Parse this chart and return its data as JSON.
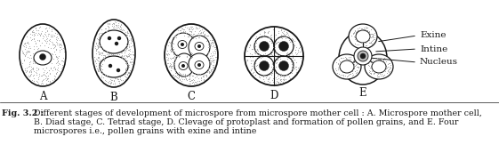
{
  "fig_label": "Fig. 3.2 :",
  "caption_line1": "Different stages of development of microspore from microspore mother cell : A. Microspore mother cell,",
  "caption_line2": "B. Diad stage, C. Tetrad stage, D. Clevage of protoplast and formation of pollen grains, and E. Four",
  "caption_line3": "microspores i.e., pollen grains with exine and intine",
  "stage_labels": [
    "A",
    "B",
    "C",
    "D",
    "E"
  ],
  "legend_labels": [
    "Exine",
    "Intine",
    "Nucleus"
  ],
  "bg_color": "#ffffff",
  "draw_color": "#1a1a1a",
  "stipple_color": "#aaaaaa",
  "caption_fontsize": 6.8,
  "label_fontsize": 8.5,
  "legend_fontsize": 7.5
}
